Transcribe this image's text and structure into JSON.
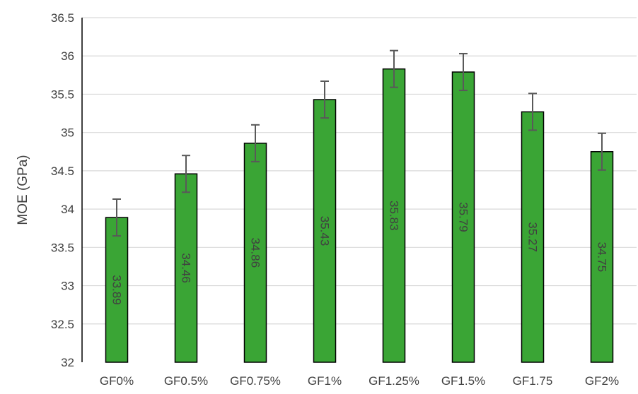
{
  "chart_data": {
    "type": "bar",
    "title": "",
    "xlabel": "",
    "ylabel": "MOE (GPa)",
    "categories": [
      "GF0%",
      "GF0.5%",
      "GF0.75%",
      "GF1%",
      "GF1.25%",
      "GF1.5%",
      "GF1.75",
      "GF2%"
    ],
    "values": [
      33.89,
      34.46,
      34.86,
      35.43,
      35.83,
      35.79,
      35.27,
      34.75
    ],
    "data_labels": [
      "33.89",
      "34.46",
      "34.86",
      "35.43",
      "35.83",
      "35.79",
      "35.27",
      "34.75"
    ],
    "error_bars": [
      0.24,
      0.24,
      0.24,
      0.24,
      0.24,
      0.24,
      0.24,
      0.24
    ],
    "ylim": [
      32,
      36.5
    ],
    "yticks": [
      "32",
      "32.5",
      "33",
      "33.5",
      "34",
      "34.5",
      "35",
      "35.5",
      "36",
      "36.5"
    ],
    "grid": true,
    "legend": "none",
    "colors": {
      "bar_fill": "#3aa535",
      "bar_stroke": "#000000",
      "grid": "#d9d9d9",
      "error_bar": "#595959",
      "text": "#404040"
    }
  }
}
